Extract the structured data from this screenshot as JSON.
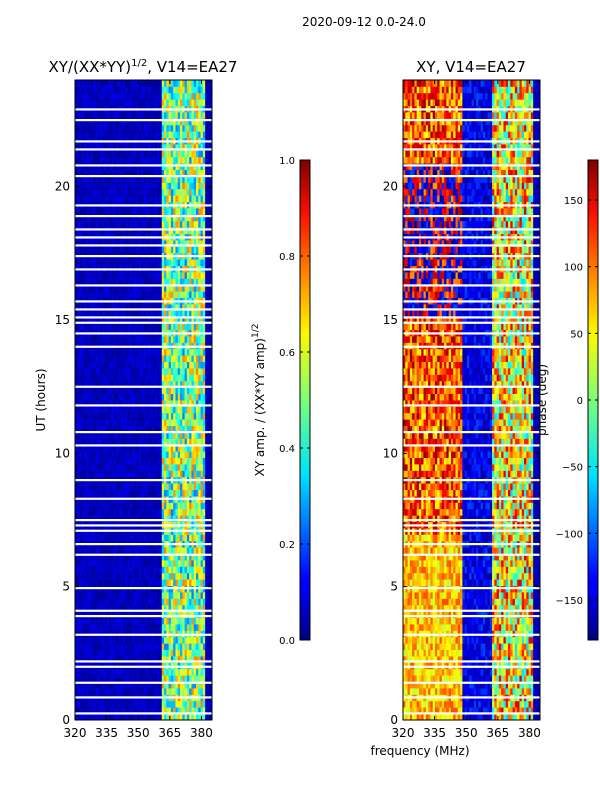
{
  "suptitle": "2020-09-12 0.0-24.0",
  "xlabel": "frequency (MHz)",
  "chart_data": [
    {
      "type": "heatmap",
      "title": "XY/(XX*YY)",
      "title_suffix": ", V14=EA27",
      "title_superscript": "1/2",
      "xlabel": "",
      "ylabel": "UT (hours)",
      "xlim": [
        320,
        385
      ],
      "ylim": [
        0,
        24
      ],
      "xticks": [
        320,
        335,
        350,
        365,
        380
      ],
      "yticks": [
        0,
        5,
        10,
        15,
        20
      ],
      "colormap": "jet",
      "colorbar": {
        "label": "XY amp. / (XX*YY amp)",
        "label_superscript": "1/2",
        "range": [
          0.0,
          1.0
        ],
        "ticks": [
          "0.0",
          "0.2",
          "0.4",
          "0.6",
          "0.8",
          "1.0"
        ],
        "tick_values": [
          0.0,
          0.2,
          0.4,
          0.6,
          0.8,
          1.0
        ]
      },
      "regions": [
        {
          "band_mhz": [
            320,
            361
          ],
          "value_range": [
            0.02,
            0.1
          ],
          "description": "low normalized amplitude"
        },
        {
          "band_mhz": [
            361,
            382
          ],
          "value_range": [
            0.25,
            0.75
          ],
          "description": "elevated normalized amplitude"
        }
      ],
      "flagged_ut_hours": [
        0.25,
        0.85,
        1.4,
        2.0,
        2.2,
        3.2,
        3.9,
        4.1,
        4.95,
        6.2,
        6.6,
        7.1,
        7.3,
        7.5,
        8.3,
        9.0,
        10.3,
        10.8,
        11.8,
        12.5,
        14.0,
        14.5,
        14.9,
        15.1,
        15.4,
        15.7,
        16.3,
        16.9,
        17.4,
        17.8,
        18.1,
        18.4,
        18.9,
        19.3,
        20.4,
        20.8,
        21.4,
        21.7,
        22.5,
        22.9
      ]
    },
    {
      "type": "heatmap",
      "title": "XY, V14=EA27",
      "xlabel": "",
      "ylabel": "",
      "xlim": [
        320,
        385
      ],
      "ylim": [
        0,
        24
      ],
      "xticks": [
        320,
        335,
        350,
        365,
        380
      ],
      "yticks": [
        0,
        5,
        10,
        15,
        20
      ],
      "colormap": "jet",
      "colorbar": {
        "label": "phase (deg)",
        "range": [
          -180,
          180
        ],
        "ticks": [
          "−150",
          "−100",
          "−50",
          "0",
          "50",
          "100",
          "150"
        ],
        "tick_values": [
          -150,
          -100,
          -50,
          0,
          50,
          100,
          150
        ]
      },
      "regions": [
        {
          "band_mhz": [
            320,
            348
          ],
          "value_range": [
            40,
            175
          ],
          "description": "warm phases, strongest 7-15 UT"
        },
        {
          "band_mhz": [
            348,
            362
          ],
          "value_range": [
            -170,
            -110
          ],
          "description": "mostly blue"
        },
        {
          "band_mhz": [
            362,
            382
          ],
          "value_range": [
            -60,
            150
          ],
          "description": "mixed cyan / orange"
        }
      ],
      "flagged_ut_hours": [
        0.25,
        0.85,
        1.4,
        2.0,
        2.2,
        3.2,
        3.9,
        4.1,
        4.95,
        6.2,
        6.6,
        7.1,
        7.3,
        7.5,
        8.3,
        9.0,
        10.3,
        10.8,
        11.8,
        12.5,
        14.0,
        14.5,
        14.9,
        15.1,
        15.4,
        15.7,
        16.3,
        16.9,
        17.4,
        17.8,
        18.1,
        18.4,
        18.9,
        19.3,
        20.4,
        20.8,
        21.4,
        21.7,
        22.5,
        22.9
      ]
    }
  ]
}
